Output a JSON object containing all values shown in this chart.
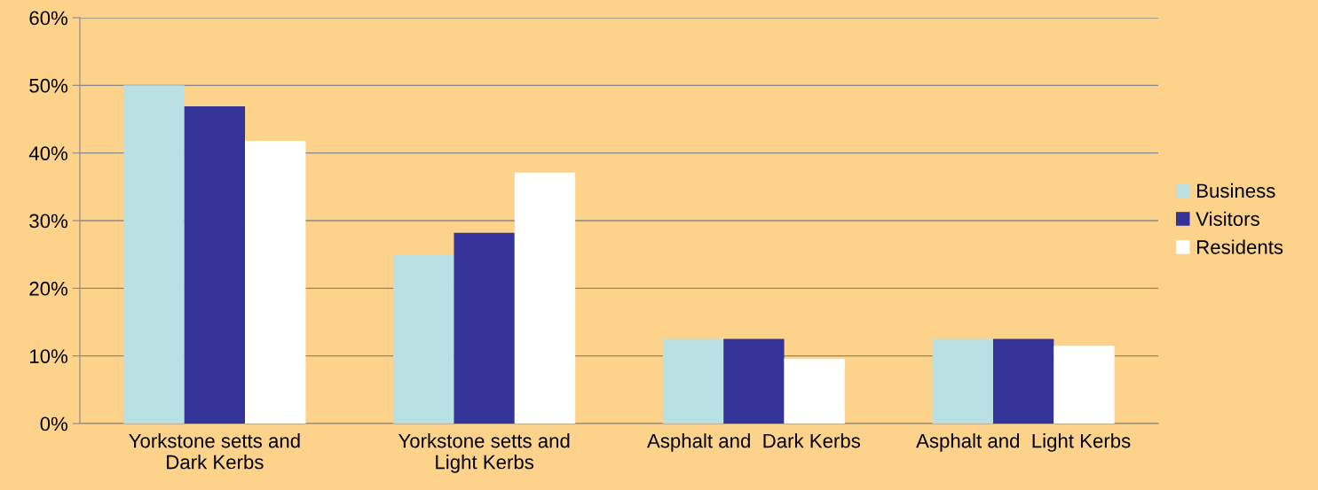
{
  "chart_data": {
    "type": "bar",
    "categories": [
      "Yorkstone setts and\nDark Kerbs",
      "Yorkstone setts and\nLight Kerbs",
      "Asphalt and  Dark Kerbs",
      "Asphalt and  Light Kerbs"
    ],
    "series": [
      {
        "name": "Business",
        "color": "#b9e0e3",
        "values": [
          50,
          25,
          12.5,
          12.5
        ]
      },
      {
        "name": "Visitors",
        "color": "#333399",
        "values": [
          46.9,
          28.2,
          12.5,
          12.5
        ]
      },
      {
        "name": "Residents",
        "color": "#ffffff",
        "values": [
          41.8,
          37.1,
          9.6,
          11.5
        ]
      }
    ],
    "ylim": [
      0,
      60
    ],
    "yticks": [
      {
        "value": 0,
        "label": "0%"
      },
      {
        "value": 10,
        "label": "10%"
      },
      {
        "value": 20,
        "label": "20%"
      },
      {
        "value": 30,
        "label": "30%"
      },
      {
        "value": 40,
        "label": "40%"
      },
      {
        "value": 50,
        "label": "50%"
      },
      {
        "value": 60,
        "label": "60%"
      }
    ],
    "grid": "y",
    "legend": "right"
  }
}
